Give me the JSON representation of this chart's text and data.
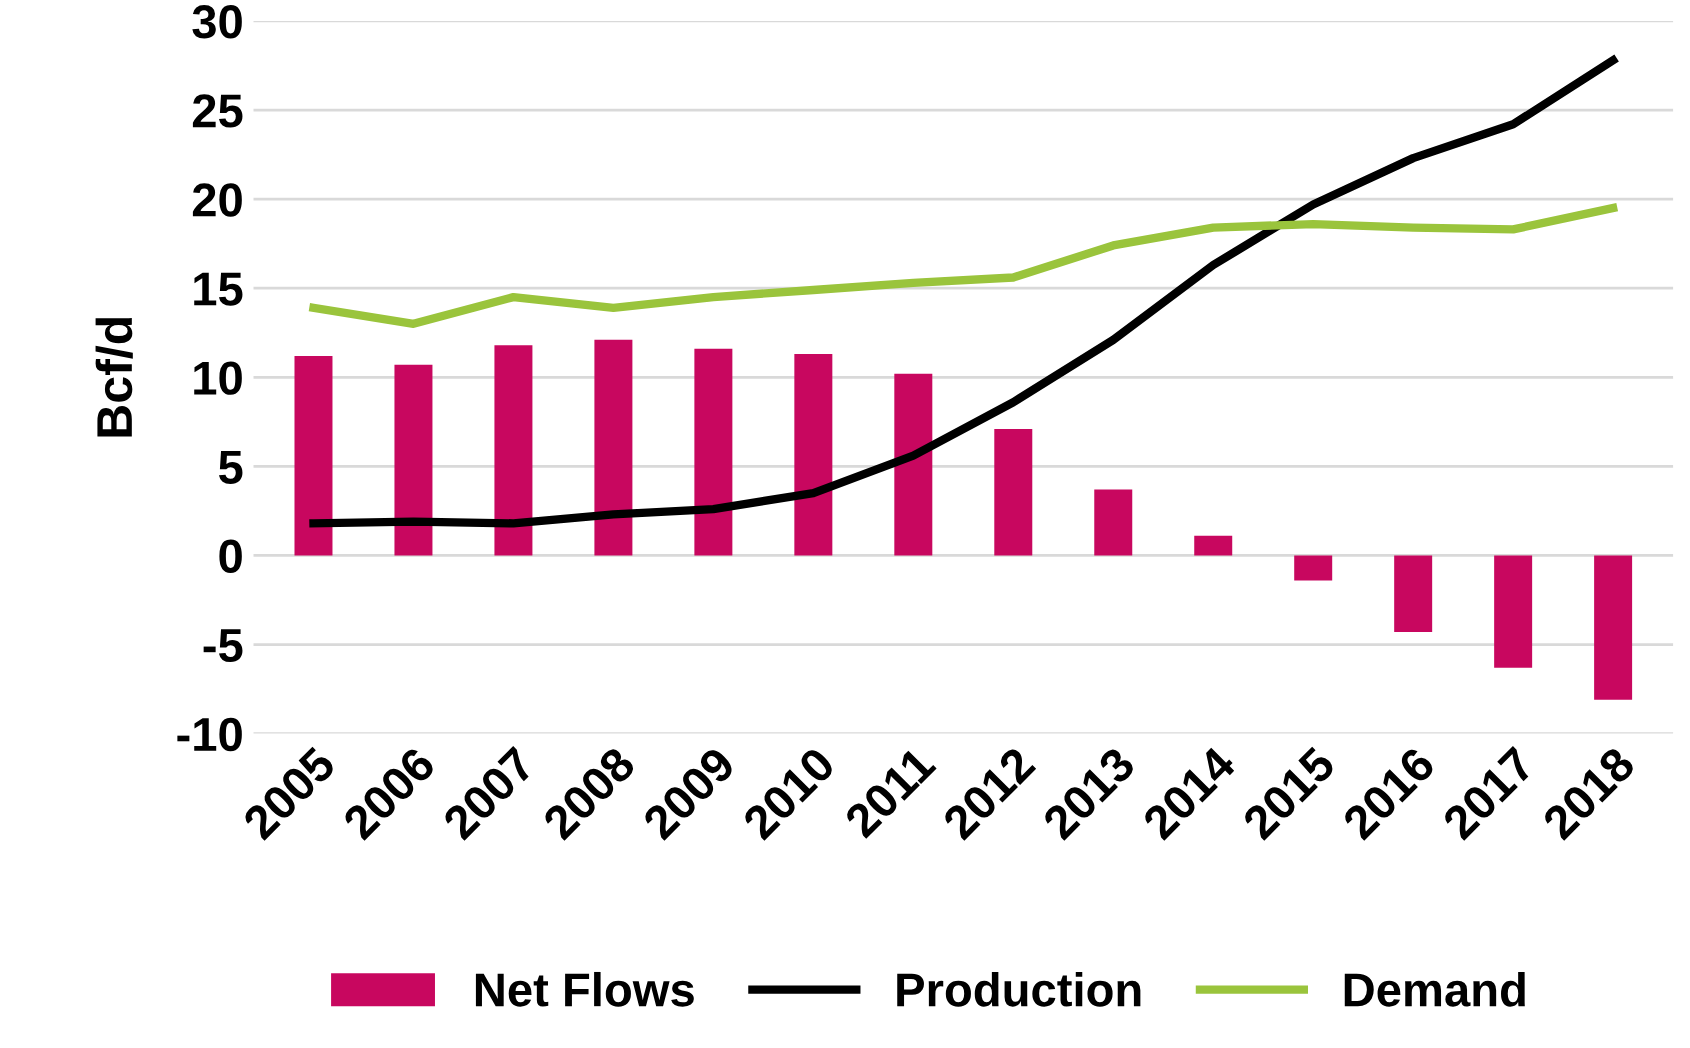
{
  "chart_data": {
    "type": "bar",
    "ylabel": "Bcf/d",
    "categories": [
      "2005",
      "2006",
      "2007",
      "2008",
      "2009",
      "2010",
      "2011",
      "2012",
      "2013",
      "2014",
      "2015",
      "2016",
      "2017",
      "2018"
    ],
    "series": [
      {
        "name": "Net Flows",
        "color": "#c8075f",
        "values": [
          11.2,
          10.7,
          11.8,
          12.1,
          11.6,
          11.3,
          10.2,
          7.1,
          3.7,
          1.1,
          -1.4,
          -4.3,
          -6.3,
          -8.1
        ]
      },
      {
        "name": "Production",
        "type": "line",
        "color": "#000000",
        "values": [
          1.8,
          1.9,
          1.8,
          2.3,
          2.6,
          3.5,
          5.6,
          8.6,
          12.1,
          16.3,
          19.7,
          22.3,
          24.2,
          27.8
        ]
      },
      {
        "name": "Demand",
        "type": "line",
        "color": "#9ac43c",
        "values": [
          13.9,
          13.0,
          14.5,
          13.9,
          14.5,
          14.9,
          15.3,
          15.6,
          17.4,
          18.4,
          18.6,
          18.4,
          18.3,
          19.5
        ]
      }
    ],
    "ylim": [
      -10,
      30
    ],
    "yticks": [
      -10,
      -5,
      0,
      5,
      10,
      15,
      20,
      25,
      30
    ],
    "grid": "y",
    "legend": "bottom"
  }
}
